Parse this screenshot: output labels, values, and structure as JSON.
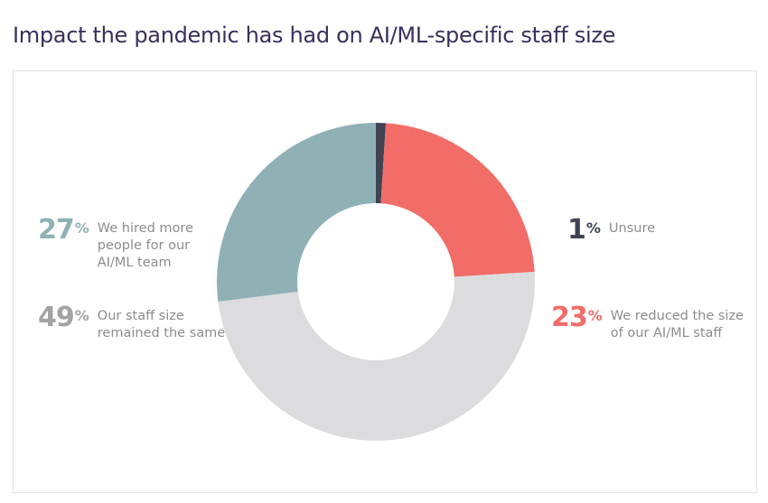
{
  "title": "Impact the pandemic has had on AI/ML-specific staff size",
  "chart_data": {
    "type": "pie",
    "donut": true,
    "unit": "%",
    "slices": [
      {
        "label_lines": [
          "Unsure"
        ],
        "value": 1,
        "color": "#3f4354"
      },
      {
        "label_lines": [
          "We reduced the size",
          "of our AI/ML staff"
        ],
        "value": 23,
        "color": "#f26d68"
      },
      {
        "label_lines": [
          "Our staff size",
          "remained the same"
        ],
        "value": 49,
        "color": "#dcdcde"
      },
      {
        "label_lines": [
          "We hired more",
          "people for our",
          "AI/ML team"
        ],
        "value": 27,
        "color": "#8fb1b5"
      }
    ],
    "legend_placement": "sides"
  }
}
